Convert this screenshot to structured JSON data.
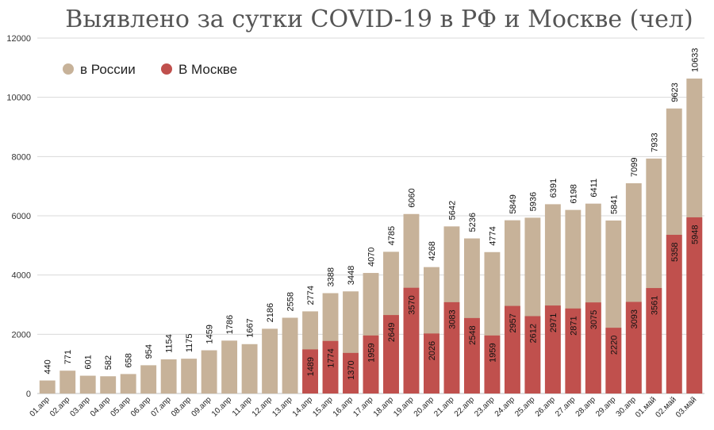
{
  "chart_data": {
    "type": "bar",
    "title": "Выявлено за сутки COVID-19 в РФ и Москве (чел)",
    "xlabel": "",
    "ylabel": "",
    "ylim": [
      0,
      12000
    ],
    "yticks": [
      0,
      2000,
      4000,
      6000,
      8000,
      10000,
      12000
    ],
    "grid": true,
    "legend_position": "top-left",
    "categories": [
      "01.апр",
      "02.апр",
      "03.апр",
      "04.апр",
      "05.апр",
      "06.апр",
      "07.апр",
      "08.апр",
      "09.апр",
      "10.апр",
      "11.апр",
      "12.апр",
      "13.апр",
      "14.апр",
      "15.апр",
      "16.апр",
      "17.апр",
      "18.апр",
      "19.апр",
      "20.апр",
      "21.апр",
      "22.апр",
      "23.апр",
      "24.апр",
      "25.апр",
      "26.апр",
      "27.апр",
      "28.апр",
      "29.апр",
      "30.апр",
      "01.май",
      "02.май",
      "03.май"
    ],
    "series": [
      {
        "name": "в России",
        "color": "#c7b299",
        "values": [
          440,
          771,
          601,
          582,
          658,
          954,
          1154,
          1175,
          1459,
          1786,
          1667,
          2186,
          2558,
          2774,
          3388,
          3448,
          4070,
          4785,
          6060,
          4268,
          5642,
          5236,
          4774,
          5849,
          5936,
          6391,
          6198,
          6411,
          5841,
          7099,
          7933,
          9623,
          10633
        ]
      },
      {
        "name": "В Москве",
        "color": "#c0504d",
        "values": [
          null,
          null,
          null,
          null,
          null,
          null,
          null,
          null,
          null,
          null,
          null,
          null,
          null,
          1489,
          1774,
          1370,
          1959,
          2649,
          3570,
          2026,
          3083,
          2548,
          1959,
          2957,
          2612,
          2971,
          2871,
          3075,
          2220,
          3093,
          3561,
          5358,
          5948
        ]
      }
    ]
  }
}
